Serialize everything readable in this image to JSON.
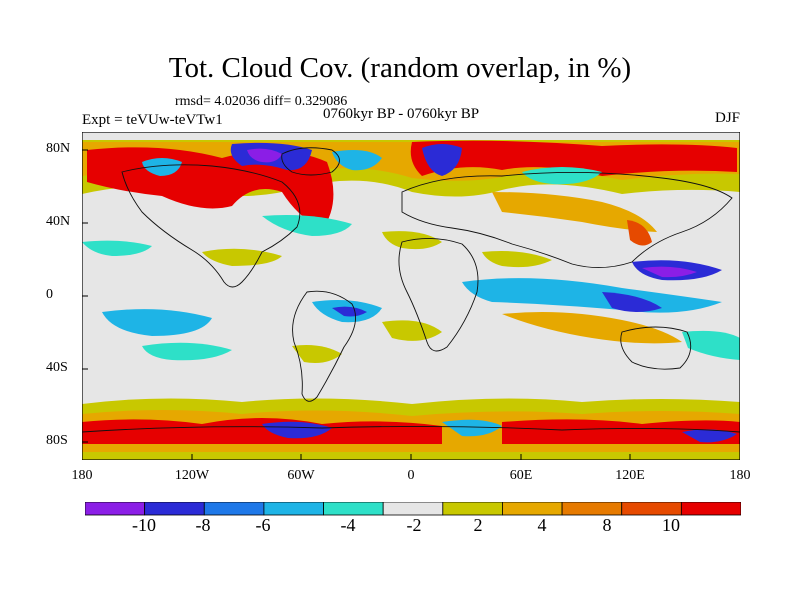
{
  "title": "Tot. Cloud Cov. (random overlap, in %)",
  "stats": "rmsd= 4.02036 diff= 0.329086",
  "expt": "Expt = teVUw-teVTw1",
  "period": "0760kyr BP - 0760kyr BP",
  "season": "DJF",
  "lat_ticks": [
    "80N",
    "40N",
    "0",
    "40S",
    "80S"
  ],
  "lon_ticks": [
    "180",
    "120W",
    "60W",
    "0",
    "60E",
    "120E",
    "180"
  ],
  "colorbar": {
    "colors": [
      "#8b1ee6",
      "#2b2bd6",
      "#1e78e8",
      "#1eb4e6",
      "#2ee0c8",
      "#e6e6e6",
      "#c8c800",
      "#e6a800",
      "#e67a00",
      "#e64a00",
      "#e60000"
    ],
    "labels": [
      "-10",
      "-8",
      "-6",
      "-4",
      "-2",
      "2",
      "4",
      "8",
      "10"
    ]
  }
}
